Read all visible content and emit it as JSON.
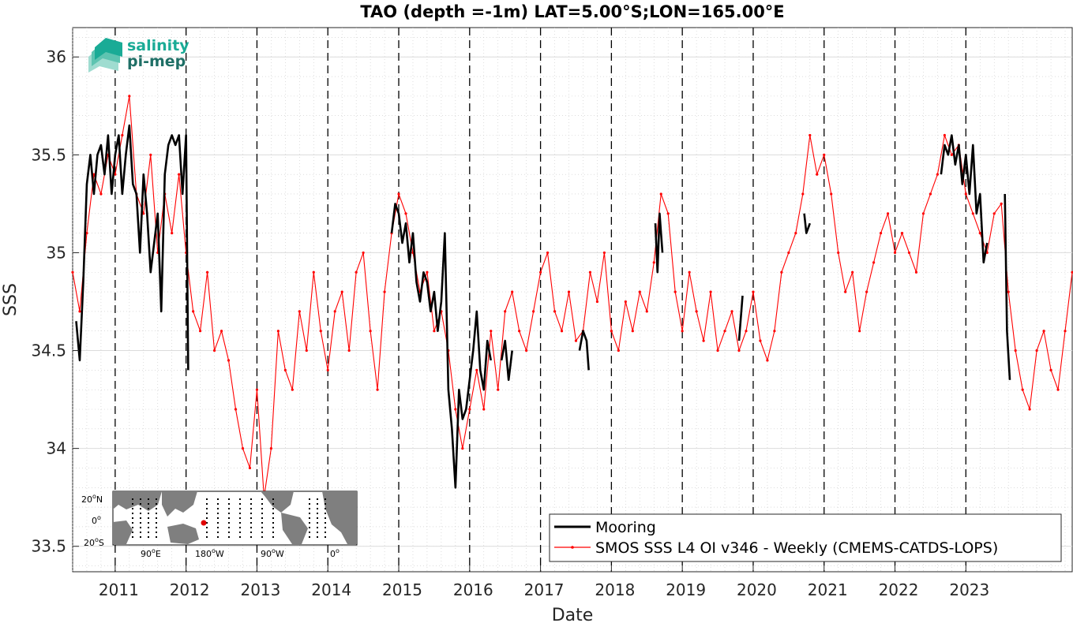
{
  "logo": {
    "line1": "salinity",
    "line2": "pi-mep",
    "color1": "#1aab96",
    "color2": "#1f6f66"
  },
  "chart_data": {
    "type": "line",
    "title": "TAO (depth =-1m) LAT=5.00°S;LON=165.00°E",
    "xlabel": "Date",
    "ylabel": "SSS",
    "xlim": [
      2010.4,
      2024.5
    ],
    "ylim": [
      33.37,
      36.15
    ],
    "grid": true,
    "x_tick_labels": [
      "2011",
      "2012",
      "2013",
      "2014",
      "2015",
      "2016",
      "2017",
      "2018",
      "2019",
      "2020",
      "2021",
      "2022",
      "2023"
    ],
    "x_ticks": [
      2011,
      2012,
      2013,
      2014,
      2015,
      2016,
      2017,
      2018,
      2019,
      2020,
      2021,
      2022,
      2023
    ],
    "y_ticks": [
      33.5,
      34,
      34.5,
      35,
      35.5,
      36
    ],
    "y_tick_labels": [
      "33.5",
      "34",
      "34.5",
      "35",
      "35.5",
      "36"
    ],
    "vlines_dashed": [
      2011,
      2012,
      2013,
      2014,
      2015,
      2016,
      2017,
      2018,
      2019,
      2020,
      2021,
      2022,
      2023
    ],
    "legend_position": "bottom-right",
    "series": [
      {
        "name": "Mooring",
        "color": "#000000",
        "style": "thick-line",
        "segments": [
          {
            "x": [
              2010.45,
              2010.5,
              2010.55,
              2010.6,
              2010.65,
              2010.7,
              2010.75,
              2010.8,
              2010.85,
              2010.9,
              2010.95,
              2011.0,
              2011.05,
              2011.1,
              2011.15,
              2011.2,
              2011.25,
              2011.3,
              2011.35,
              2011.4,
              2011.45,
              2011.5,
              2011.55,
              2011.6,
              2011.65,
              2011.7,
              2011.75,
              2011.8,
              2011.85,
              2011.9,
              2011.95,
              2012.0,
              2012.03
            ],
            "y": [
              34.65,
              34.45,
              34.85,
              35.35,
              35.5,
              35.3,
              35.5,
              35.55,
              35.4,
              35.6,
              35.3,
              35.5,
              35.6,
              35.3,
              35.5,
              35.65,
              35.35,
              35.3,
              35.0,
              35.4,
              35.2,
              34.9,
              35.05,
              35.2,
              34.7,
              35.4,
              35.55,
              35.6,
              35.55,
              35.6,
              35.3,
              35.6,
              34.4
            ]
          },
          {
            "x": [
              2014.9,
              2014.95,
              2015.0,
              2015.05,
              2015.1,
              2015.15,
              2015.2,
              2015.25,
              2015.3,
              2015.35,
              2015.4,
              2015.45,
              2015.5,
              2015.55,
              2015.6,
              2015.65,
              2015.7,
              2015.75,
              2015.8,
              2015.85,
              2015.9,
              2015.95,
              2016.0,
              2016.05,
              2016.1,
              2016.15,
              2016.2,
              2016.25,
              2016.3
            ],
            "y": [
              35.1,
              35.25,
              35.2,
              35.05,
              35.15,
              34.95,
              35.1,
              34.85,
              34.75,
              34.9,
              34.85,
              34.7,
              34.8,
              34.6,
              34.75,
              35.1,
              34.3,
              34.1,
              33.8,
              34.3,
              34.15,
              34.2,
              34.35,
              34.5,
              34.7,
              34.4,
              34.3,
              34.55,
              34.45
            ]
          },
          {
            "x": [
              2016.45,
              2016.5,
              2016.55,
              2016.6
            ],
            "y": [
              34.45,
              34.55,
              34.35,
              34.5
            ]
          },
          {
            "x": [
              2017.55,
              2017.6,
              2017.65,
              2017.68
            ],
            "y": [
              34.5,
              34.6,
              34.55,
              34.4
            ]
          },
          {
            "x": [
              2018.62,
              2018.65,
              2018.68,
              2018.72
            ],
            "y": [
              35.15,
              34.9,
              35.2,
              35.0
            ]
          },
          {
            "x": [
              2019.8,
              2019.85
            ],
            "y": [
              34.55,
              34.78
            ]
          },
          {
            "x": [
              2020.72,
              2020.75,
              2020.8
            ],
            "y": [
              35.2,
              35.1,
              35.15
            ]
          },
          {
            "x": [
              2022.65,
              2022.7,
              2022.75,
              2022.8,
              2022.85,
              2022.9,
              2022.95,
              2023.0,
              2023.05,
              2023.1,
              2023.15,
              2023.2,
              2023.25,
              2023.3
            ],
            "y": [
              35.4,
              35.55,
              35.5,
              35.6,
              35.45,
              35.55,
              35.35,
              35.5,
              35.3,
              35.55,
              35.2,
              35.3,
              34.95,
              35.05
            ]
          },
          {
            "x": [
              2023.55,
              2023.58,
              2023.62
            ],
            "y": [
              35.3,
              34.6,
              34.35
            ]
          }
        ]
      },
      {
        "name": "SMOS SSS L4 OI v346 - Weekly (CMEMS-CATDS-LOPS)",
        "color": "#ff0000",
        "style": "thin-line-dots",
        "x": [
          2010.4,
          2010.5,
          2010.6,
          2010.7,
          2010.8,
          2010.9,
          2011.0,
          2011.1,
          2011.2,
          2011.3,
          2011.4,
          2011.5,
          2011.6,
          2011.7,
          2011.8,
          2011.9,
          2012.0,
          2012.1,
          2012.2,
          2012.3,
          2012.4,
          2012.5,
          2012.6,
          2012.7,
          2012.8,
          2012.9,
          2013.0,
          2013.1,
          2013.2,
          2013.3,
          2013.4,
          2013.5,
          2013.6,
          2013.7,
          2013.8,
          2013.9,
          2014.0,
          2014.1,
          2014.2,
          2014.3,
          2014.4,
          2014.5,
          2014.6,
          2014.7,
          2014.8,
          2014.9,
          2015.0,
          2015.1,
          2015.2,
          2015.3,
          2015.4,
          2015.5,
          2015.6,
          2015.7,
          2015.8,
          2015.9,
          2016.0,
          2016.1,
          2016.2,
          2016.3,
          2016.4,
          2016.5,
          2016.6,
          2016.7,
          2016.8,
          2016.9,
          2017.0,
          2017.1,
          2017.2,
          2017.3,
          2017.4,
          2017.5,
          2017.6,
          2017.7,
          2017.8,
          2017.9,
          2018.0,
          2018.1,
          2018.2,
          2018.3,
          2018.4,
          2018.5,
          2018.6,
          2018.7,
          2018.8,
          2018.9,
          2019.0,
          2019.1,
          2019.2,
          2019.3,
          2019.4,
          2019.5,
          2019.6,
          2019.7,
          2019.8,
          2019.9,
          2020.0,
          2020.1,
          2020.2,
          2020.3,
          2020.4,
          2020.5,
          2020.6,
          2020.7,
          2020.8,
          2020.9,
          2021.0,
          2021.1,
          2021.2,
          2021.3,
          2021.4,
          2021.5,
          2021.6,
          2021.7,
          2021.8,
          2021.9,
          2022.0,
          2022.1,
          2022.2,
          2022.3,
          2022.4,
          2022.5,
          2022.6,
          2022.7,
          2022.8,
          2022.9,
          2023.0,
          2023.1,
          2023.2,
          2023.3,
          2023.4,
          2023.5,
          2023.6,
          2023.7,
          2023.8,
          2023.9,
          2024.0,
          2024.1,
          2024.2,
          2024.3,
          2024.4,
          2024.5
        ],
        "y": [
          34.9,
          34.7,
          35.1,
          35.4,
          35.3,
          35.5,
          35.4,
          35.6,
          35.8,
          35.3,
          35.2,
          35.5,
          35.0,
          35.3,
          35.1,
          35.4,
          35.0,
          34.7,
          34.6,
          34.9,
          34.5,
          34.6,
          34.45,
          34.2,
          34.0,
          33.9,
          34.3,
          33.75,
          34.0,
          34.6,
          34.4,
          34.3,
          34.7,
          34.5,
          34.9,
          34.6,
          34.4,
          34.7,
          34.8,
          34.5,
          34.9,
          35.0,
          34.6,
          34.3,
          34.8,
          35.1,
          35.3,
          35.2,
          35.0,
          34.8,
          34.9,
          34.6,
          34.7,
          34.5,
          34.2,
          34.0,
          34.2,
          34.4,
          34.2,
          34.6,
          34.3,
          34.7,
          34.8,
          34.6,
          34.5,
          34.7,
          34.9,
          35.0,
          34.7,
          34.6,
          34.8,
          34.55,
          34.6,
          34.9,
          34.75,
          35.0,
          34.6,
          34.5,
          34.75,
          34.6,
          34.8,
          34.7,
          34.95,
          35.3,
          35.2,
          34.8,
          34.6,
          34.9,
          34.7,
          34.55,
          34.8,
          34.5,
          34.6,
          34.7,
          34.5,
          34.6,
          34.8,
          34.55,
          34.45,
          34.6,
          34.9,
          35.0,
          35.1,
          35.3,
          35.6,
          35.4,
          35.5,
          35.3,
          35.0,
          34.8,
          34.9,
          34.6,
          34.8,
          34.95,
          35.1,
          35.2,
          35.0,
          35.1,
          35.0,
          34.9,
          35.2,
          35.3,
          35.4,
          35.6,
          35.5,
          35.55,
          35.3,
          35.2,
          35.1,
          35.0,
          35.2,
          35.25,
          34.8,
          34.5,
          34.3,
          34.2,
          34.5,
          34.6,
          34.4,
          34.3,
          34.6,
          34.9
        ]
      }
    ]
  },
  "inset": {
    "lat_labels": [
      "20",
      "0",
      "20"
    ],
    "lat_suffix": [
      "N",
      "",
      "S"
    ],
    "lon_labels": [
      "90",
      "180",
      "90",
      "0"
    ],
    "lon_suffix": [
      "E",
      "W",
      "W",
      ""
    ],
    "marker_color": "#e00000"
  }
}
